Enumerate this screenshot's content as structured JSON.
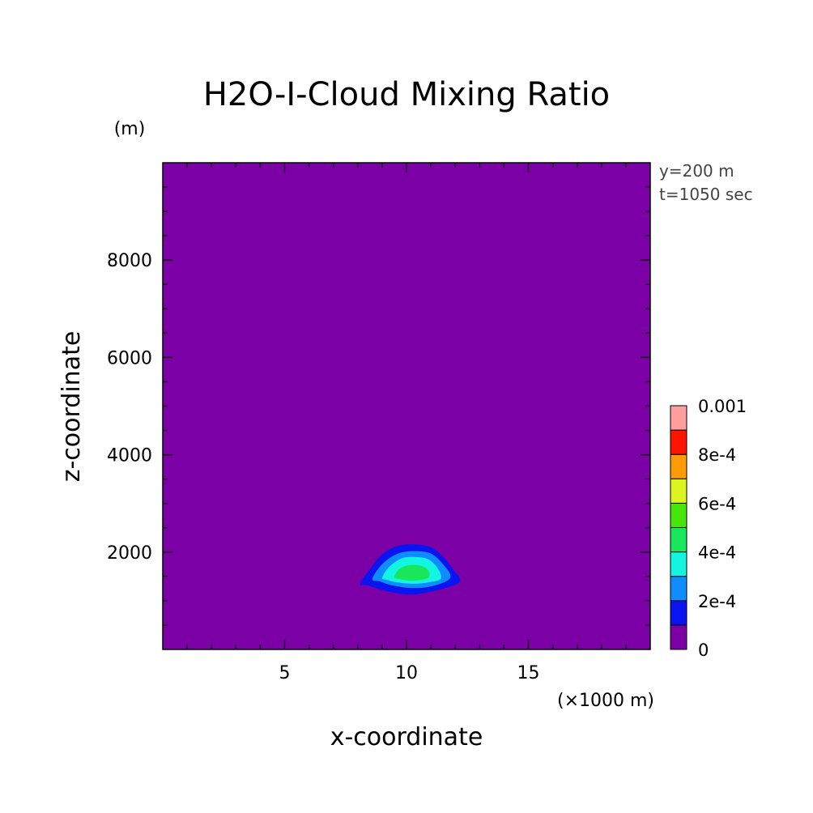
{
  "chart_data": {
    "type": "heatmap",
    "subtype": "filled-contour",
    "title": "H2O-I-Cloud Mixing Ratio",
    "xlabel": "x-coordinate",
    "ylabel": "z-coordinate",
    "x_unit": "(×1000 m)",
    "y_unit": "(m)",
    "xlim": [
      0,
      20
    ],
    "ylim": [
      0,
      10000
    ],
    "x_ticks": [
      "5",
      "10",
      "15"
    ],
    "x_tick_values": [
      5,
      10,
      15
    ],
    "y_ticks": [
      "2000",
      "4000",
      "6000",
      "8000"
    ],
    "y_tick_values": [
      2000,
      4000,
      6000,
      8000
    ],
    "annotations": [
      "y=200 m",
      "t=1050 sec"
    ],
    "background_color": "#7b00a5",
    "colorbar": {
      "labels": [
        "0",
        "2e-4",
        "4e-4",
        "6e-4",
        "8e-4",
        "0.001"
      ],
      "label_values": [
        0,
        0.0002,
        0.0004,
        0.0006,
        0.0008,
        0.001
      ],
      "levels": [
        0,
        0.0001,
        0.0002,
        0.0003,
        0.0004,
        0.0005,
        0.0006,
        0.0007,
        0.0008,
        0.0009,
        0.001
      ],
      "colors": [
        "#7b00a5",
        "#0a14f0",
        "#0f8cff",
        "#14f5e1",
        "#19e65a",
        "#46e60a",
        "#dcf51e",
        "#ff9b05",
        "#ff1400",
        "#ff9e9e"
      ]
    },
    "contours": [
      {
        "level": 0.0001,
        "color": "#0a14f0",
        "points": [
          [
            8.1,
            1350
          ],
          [
            8.5,
            1650
          ],
          [
            9.0,
            1950
          ],
          [
            9.6,
            2120
          ],
          [
            10.3,
            2160
          ],
          [
            11.0,
            2100
          ],
          [
            11.5,
            1900
          ],
          [
            11.9,
            1650
          ],
          [
            12.2,
            1400
          ],
          [
            11.5,
            1250
          ],
          [
            10.8,
            1170
          ],
          [
            10.3,
            1130
          ],
          [
            9.8,
            1140
          ],
          [
            9.0,
            1220
          ],
          [
            8.4,
            1320
          ]
        ]
      },
      {
        "level": 0.0002,
        "color": "#0f8cff",
        "points": [
          [
            8.6,
            1450
          ],
          [
            9.0,
            1750
          ],
          [
            9.6,
            1960
          ],
          [
            10.3,
            2020
          ],
          [
            11.0,
            1970
          ],
          [
            11.5,
            1750
          ],
          [
            11.8,
            1480
          ],
          [
            11.2,
            1320
          ],
          [
            10.3,
            1260
          ],
          [
            9.4,
            1320
          ],
          [
            8.9,
            1400
          ]
        ]
      },
      {
        "level": 0.0003,
        "color": "#14f5e1",
        "points": [
          [
            9.0,
            1470
          ],
          [
            9.3,
            1700
          ],
          [
            9.8,
            1870
          ],
          [
            10.3,
            1900
          ],
          [
            10.9,
            1850
          ],
          [
            11.3,
            1650
          ],
          [
            11.4,
            1450
          ],
          [
            10.9,
            1380
          ],
          [
            10.3,
            1350
          ],
          [
            9.6,
            1380
          ],
          [
            9.2,
            1430
          ]
        ]
      },
      {
        "level": 0.0004,
        "color": "#19e65a",
        "points": [
          [
            9.5,
            1500
          ],
          [
            9.7,
            1650
          ],
          [
            10.1,
            1730
          ],
          [
            10.6,
            1720
          ],
          [
            10.9,
            1620
          ],
          [
            10.9,
            1480
          ],
          [
            10.5,
            1420
          ],
          [
            10.0,
            1420
          ],
          [
            9.6,
            1460
          ]
        ]
      }
    ]
  }
}
